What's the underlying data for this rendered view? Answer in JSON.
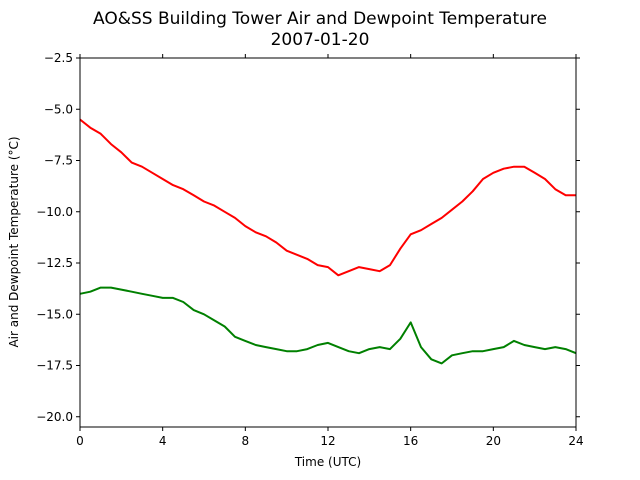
{
  "chart_data": {
    "type": "line",
    "title": "AO&SS Building Tower Air and Dewpoint Temperature",
    "subtitle": "2007-01-20",
    "xlabel": "Time (UTC)",
    "ylabel": "Air and Dewpoint Temperature (°C)",
    "xlim": [
      0,
      24
    ],
    "ylim": [
      -20.5,
      -2.5
    ],
    "xticks": [
      0,
      4,
      8,
      12,
      16,
      20,
      24
    ],
    "xtick_labels": [
      "0",
      "4",
      "8",
      "12",
      "16",
      "20",
      "24"
    ],
    "yticks": [
      -2.5,
      -5.0,
      -7.5,
      -10.0,
      -12.5,
      -15.0,
      -17.5,
      -20.0
    ],
    "ytick_labels": [
      "−2.5",
      "−5.0",
      "−7.5",
      "−10.0",
      "−12.5",
      "−15.0",
      "−17.5",
      "−20.0"
    ],
    "grid": false,
    "series": [
      {
        "color": "#ff0000",
        "x": [
          0,
          0.5,
          1,
          1.5,
          2,
          2.5,
          3,
          3.5,
          4,
          4.5,
          5,
          5.5,
          6,
          6.5,
          7,
          7.5,
          8,
          8.5,
          9,
          9.5,
          10,
          10.5,
          11,
          11.5,
          12,
          12.5,
          13,
          13.5,
          14,
          14.5,
          15,
          15.5,
          16,
          16.5,
          17,
          17.5,
          18,
          18.5,
          19,
          19.5,
          20,
          20.5,
          21,
          21.5,
          22,
          22.5,
          23,
          23.5,
          24
        ],
        "values": [
          -5.5,
          -5.9,
          -6.2,
          -6.7,
          -7.1,
          -7.6,
          -7.8,
          -8.1,
          -8.4,
          -8.7,
          -8.9,
          -9.2,
          -9.5,
          -9.7,
          -10.0,
          -10.3,
          -10.7,
          -11.0,
          -11.2,
          -11.5,
          -11.9,
          -12.1,
          -12.3,
          -12.6,
          -12.7,
          -13.1,
          -12.9,
          -12.7,
          -12.8,
          -12.9,
          -12.6,
          -11.8,
          -11.1,
          -10.9,
          -10.6,
          -10.3,
          -9.9,
          -9.5,
          -9.0,
          -8.4,
          -8.1,
          -7.9,
          -7.8,
          -7.8,
          -8.1,
          -8.4,
          -8.9,
          -9.2,
          -9.2
        ]
      },
      {
        "color": "#008000",
        "x": [
          0,
          0.5,
          1,
          1.5,
          2,
          2.5,
          3,
          3.5,
          4,
          4.5,
          5,
          5.5,
          6,
          6.5,
          7,
          7.5,
          8,
          8.5,
          9,
          9.5,
          10,
          10.5,
          11,
          11.5,
          12,
          12.5,
          13,
          13.5,
          14,
          14.5,
          15,
          15.5,
          16,
          16.5,
          17,
          17.5,
          18,
          18.5,
          19,
          19.5,
          20,
          20.5,
          21,
          21.5,
          22,
          22.5,
          23,
          23.5,
          24
        ],
        "values": [
          -14.0,
          -13.9,
          -13.7,
          -13.7,
          -13.8,
          -13.9,
          -14.0,
          -14.1,
          -14.2,
          -14.2,
          -14.4,
          -14.8,
          -15.0,
          -15.3,
          -15.6,
          -16.1,
          -16.3,
          -16.5,
          -16.6,
          -16.7,
          -16.8,
          -16.8,
          -16.7,
          -16.5,
          -16.4,
          -16.6,
          -16.8,
          -16.9,
          -16.7,
          -16.6,
          -16.7,
          -16.2,
          -15.4,
          -16.6,
          -17.2,
          -17.4,
          -17.0,
          -16.9,
          -16.8,
          -16.8,
          -16.7,
          -16.6,
          -16.3,
          -16.5,
          -16.6,
          -16.7,
          -16.6,
          -16.7,
          -16.9
        ]
      }
    ]
  }
}
